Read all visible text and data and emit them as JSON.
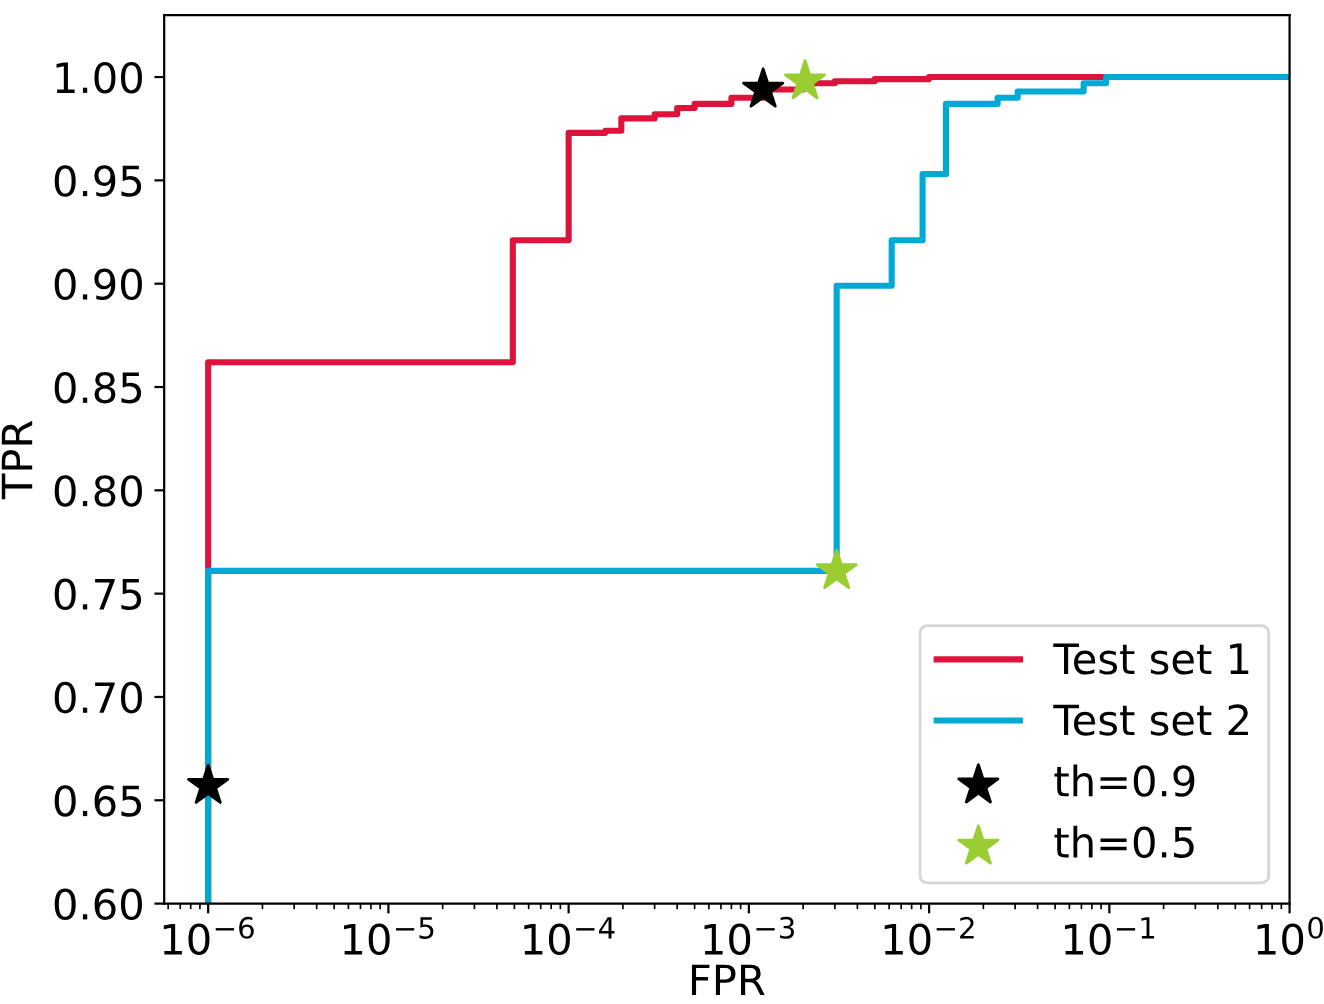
{
  "chart_data": {
    "type": "step",
    "xlabel": "FPR",
    "ylabel": "TPR",
    "log": "x",
    "grid": false,
    "legend": "bottom right",
    "xlim": [
      5.7e-07,
      1
    ],
    "ylim": [
      0.6,
      1.03
    ],
    "xticks": [
      {
        "value": 1e-06,
        "label": "10$^{−6}$"
      },
      {
        "value": 1e-05,
        "label": "10$^{−5}$"
      },
      {
        "value": 0.0001,
        "label": "10$^{−4}$"
      },
      {
        "value": 0.001,
        "label": "10$^{−3}$"
      },
      {
        "value": 0.01,
        "label": "10$^{−2}$"
      },
      {
        "value": 0.1,
        "label": "10$^{−1}$"
      },
      {
        "value": 1,
        "label": "10$^{0}$"
      }
    ],
    "yticks": [
      {
        "value": 0.6,
        "label": "0.60"
      },
      {
        "value": 0.65,
        "label": "0.65"
      },
      {
        "value": 0.7,
        "label": "0.70"
      },
      {
        "value": 0.75,
        "label": "0.75"
      },
      {
        "value": 0.8,
        "label": "0.80"
      },
      {
        "value": 0.85,
        "label": "0.85"
      },
      {
        "value": 0.9,
        "label": "0.90"
      },
      {
        "value": 0.95,
        "label": "0.95"
      },
      {
        "value": 1.0,
        "label": "1.00"
      }
    ],
    "series": [
      {
        "name": "Test set 1",
        "color": "#dc143c",
        "line_style": "solid",
        "x": [
          1e-06,
          1e-06,
          4.9e-05,
          0.0001,
          0.00016,
          0.000196,
          0.0003,
          0.0004,
          0.0005,
          0.0008,
          0.0012,
          0.002,
          0.003,
          0.005,
          0.01,
          0.1
        ],
        "values": [
          0.6,
          0.862,
          0.921,
          0.973,
          0.974,
          0.98,
          0.982,
          0.985,
          0.987,
          0.99,
          0.994,
          0.997,
          0.998,
          0.999,
          1.0,
          1.0
        ]
      },
      {
        "name": "Test set 2",
        "color": "#00aad4",
        "line_style": "solid",
        "x": [
          1e-06,
          1e-06,
          0.00307,
          0.0062,
          0.0092,
          0.0124,
          0.024,
          0.031,
          0.072,
          0.096,
          1
        ],
        "values": [
          0.6,
          0.761,
          0.899,
          0.921,
          0.953,
          0.987,
          0.99,
          0.993,
          0.997,
          1.0,
          1.0
        ]
      },
      {
        "name": "th=0.9",
        "type": "scatter",
        "color": "#000000",
        "marker": "star",
        "x": [
          0.0012,
          1e-06
        ],
        "values": [
          0.994,
          0.657
        ]
      },
      {
        "name": "th=0.5",
        "type": "scatter",
        "color": "#9acd32",
        "marker": "star",
        "x": [
          0.00205,
          0.00307
        ],
        "values": [
          0.998,
          0.761
        ]
      }
    ]
  }
}
